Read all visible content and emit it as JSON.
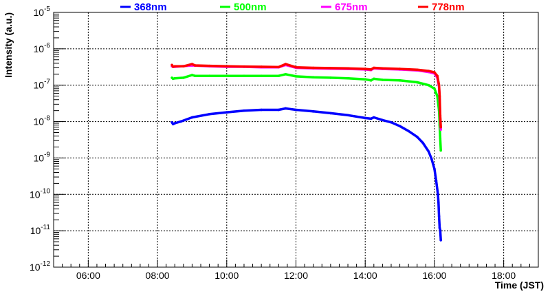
{
  "chart_data": {
    "type": "scatter",
    "title": "",
    "xlabel": "Time (JST)",
    "ylabel": "Intensity (a.u.)",
    "xlim": [
      "05:00",
      "19:00"
    ],
    "ylim": [
      1e-12,
      1e-05
    ],
    "yscale": "log",
    "grid": true,
    "legend_position": "top",
    "x_ticks": [
      "06:00",
      "08:00",
      "10:00",
      "12:00",
      "14:00",
      "16:00",
      "18:00"
    ],
    "y_ticks": [
      {
        "value": 1e-12,
        "base": "10",
        "exp": "-12"
      },
      {
        "value": 1e-11,
        "base": "10",
        "exp": "-11"
      },
      {
        "value": 1e-10,
        "base": "10",
        "exp": "-10"
      },
      {
        "value": 1e-09,
        "base": "10",
        "exp": "-9"
      },
      {
        "value": 1e-08,
        "base": "10",
        "exp": "-8"
      },
      {
        "value": 1e-07,
        "base": "10",
        "exp": "-7"
      },
      {
        "value": 1e-06,
        "base": "10",
        "exp": "-6"
      },
      {
        "value": 1e-05,
        "base": "10",
        "exp": "-5"
      }
    ],
    "series": [
      {
        "name": "368nm",
        "color": "#0000ff",
        "points": [
          [
            "08:25",
            9.5e-09
          ],
          [
            "08:27",
            8.5e-09
          ],
          [
            "08:30",
            9e-09
          ],
          [
            "08:40",
            1e-08
          ],
          [
            "09:00",
            1.3e-08
          ],
          [
            "09:30",
            1.6e-08
          ],
          [
            "10:00",
            1.8e-08
          ],
          [
            "10:30",
            2e-08
          ],
          [
            "11:00",
            2.1e-08
          ],
          [
            "11:30",
            2.1e-08
          ],
          [
            "11:42",
            2.3e-08
          ],
          [
            "12:00",
            2.1e-08
          ],
          [
            "12:30",
            1.9e-08
          ],
          [
            "13:00",
            1.7e-08
          ],
          [
            "13:30",
            1.5e-08
          ],
          [
            "14:00",
            1.25e-08
          ],
          [
            "14:10",
            1.2e-08
          ],
          [
            "14:15",
            1.3e-08
          ],
          [
            "14:30",
            1.1e-08
          ],
          [
            "14:45",
            9.5e-09
          ],
          [
            "15:00",
            7.5e-09
          ],
          [
            "15:15",
            5.5e-09
          ],
          [
            "15:30",
            3.8e-09
          ],
          [
            "15:40",
            2.6e-09
          ],
          [
            "15:50",
            1.5e-09
          ],
          [
            "15:55",
            9.5e-10
          ],
          [
            "16:00",
            5e-10
          ],
          [
            "16:03",
            2.4e-10
          ],
          [
            "16:06",
            1e-10
          ],
          [
            "16:07",
            6e-11
          ],
          [
            "16:08",
            2.5e-11
          ],
          [
            "16:09",
            1.2e-11
          ],
          [
            "16:10",
            1.05e-11
          ],
          [
            "16:11",
            5.5e-12
          ]
        ]
      },
      {
        "name": "500nm",
        "color": "#00ff00",
        "points": [
          [
            "08:25",
            1.6e-07
          ],
          [
            "08:27",
            1.5e-07
          ],
          [
            "08:30",
            1.55e-07
          ],
          [
            "08:45",
            1.6e-07
          ],
          [
            "09:00",
            1.9e-07
          ],
          [
            "09:05",
            1.8e-07
          ],
          [
            "09:30",
            1.8e-07
          ],
          [
            "10:00",
            1.8e-07
          ],
          [
            "10:30",
            1.8e-07
          ],
          [
            "11:00",
            1.8e-07
          ],
          [
            "11:30",
            1.8e-07
          ],
          [
            "11:42",
            2e-07
          ],
          [
            "12:00",
            1.75e-07
          ],
          [
            "12:30",
            1.65e-07
          ],
          [
            "13:00",
            1.6e-07
          ],
          [
            "13:30",
            1.55e-07
          ],
          [
            "14:00",
            1.45e-07
          ],
          [
            "14:10",
            1.35e-07
          ],
          [
            "14:15",
            1.5e-07
          ],
          [
            "14:30",
            1.4e-07
          ],
          [
            "15:00",
            1.35e-07
          ],
          [
            "15:30",
            1.2e-07
          ],
          [
            "15:50",
            1e-07
          ],
          [
            "16:00",
            8e-08
          ],
          [
            "16:05",
            5e-08
          ],
          [
            "16:08",
            2e-08
          ],
          [
            "16:09",
            8e-09
          ],
          [
            "16:10",
            3.5e-09
          ],
          [
            "16:11",
            1.6e-09
          ]
        ]
      },
      {
        "name": "675nm",
        "color": "#ff00ff",
        "points": [
          [
            "08:25",
            3.3e-07
          ],
          [
            "08:30",
            3.2e-07
          ],
          [
            "09:00",
            3.5e-07
          ],
          [
            "09:30",
            3.3e-07
          ],
          [
            "10:00",
            3.2e-07
          ],
          [
            "10:30",
            3.2e-07
          ],
          [
            "11:00",
            3.1e-07
          ],
          [
            "11:30",
            3.1e-07
          ],
          [
            "11:42",
            3.6e-07
          ],
          [
            "12:00",
            3e-07
          ],
          [
            "12:30",
            2.9e-07
          ],
          [
            "13:00",
            2.85e-07
          ],
          [
            "13:30",
            2.8e-07
          ],
          [
            "14:00",
            2.7e-07
          ],
          [
            "14:10",
            2.6e-07
          ],
          [
            "14:15",
            2.9e-07
          ],
          [
            "14:30",
            2.8e-07
          ],
          [
            "15:00",
            2.7e-07
          ],
          [
            "15:30",
            2.55e-07
          ],
          [
            "15:50",
            2.3e-07
          ],
          [
            "16:00",
            2.1e-07
          ],
          [
            "16:05",
            1.6e-07
          ],
          [
            "16:08",
            9e-08
          ],
          [
            "16:09",
            4e-08
          ],
          [
            "16:10",
            1.2e-08
          ],
          [
            "16:11",
            6e-09
          ]
        ]
      },
      {
        "name": "778nm",
        "color": "#ff0000",
        "points": [
          [
            "08:25",
            3.6e-07
          ],
          [
            "08:27",
            3.2e-07
          ],
          [
            "08:30",
            3.3e-07
          ],
          [
            "08:45",
            3.3e-07
          ],
          [
            "09:00",
            3.8e-07
          ],
          [
            "09:05",
            3.5e-07
          ],
          [
            "09:30",
            3.4e-07
          ],
          [
            "10:00",
            3.3e-07
          ],
          [
            "10:30",
            3.25e-07
          ],
          [
            "11:00",
            3.2e-07
          ],
          [
            "11:30",
            3.15e-07
          ],
          [
            "11:42",
            3.8e-07
          ],
          [
            "12:00",
            3.1e-07
          ],
          [
            "12:30",
            3e-07
          ],
          [
            "13:00",
            2.95e-07
          ],
          [
            "13:30",
            2.9e-07
          ],
          [
            "14:00",
            2.8e-07
          ],
          [
            "14:10",
            2.7e-07
          ],
          [
            "14:15",
            3e-07
          ],
          [
            "14:30",
            2.9e-07
          ],
          [
            "15:00",
            2.8e-07
          ],
          [
            "15:30",
            2.65e-07
          ],
          [
            "15:50",
            2.45e-07
          ],
          [
            "16:00",
            2.25e-07
          ],
          [
            "16:05",
            1.8e-07
          ],
          [
            "16:08",
            1e-07
          ],
          [
            "16:09",
            5e-08
          ],
          [
            "16:10",
            1.5e-08
          ],
          [
            "16:11",
            7e-09
          ]
        ]
      }
    ]
  }
}
